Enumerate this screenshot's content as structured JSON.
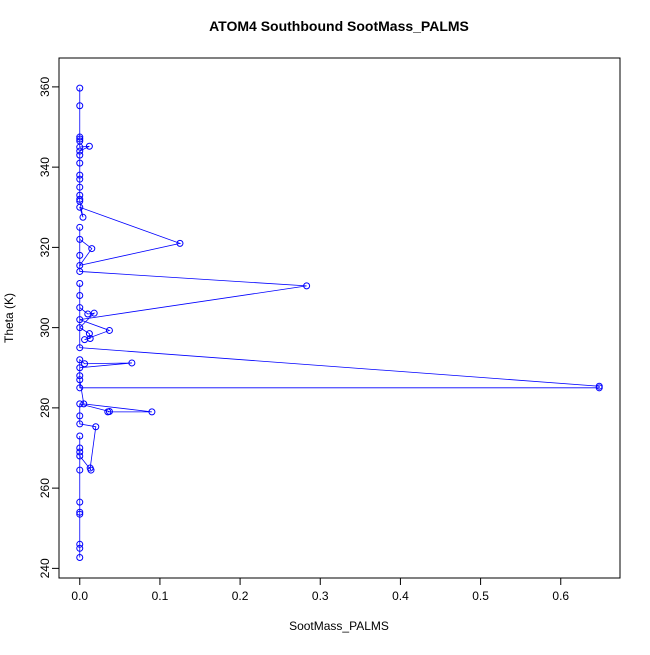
{
  "chart_data": {
    "type": "line",
    "markers": "open-circle",
    "title": "ATOM4 Southbound SootMass_PALMS",
    "x_label": "SootMass_PALMS",
    "y_label": "Theta (K)",
    "color": "#0000ff",
    "x": [
      0,
      0,
      0,
      0,
      0,
      0,
      0.012,
      0,
      0,
      0,
      0,
      0,
      0,
      0,
      0,
      0,
      0.004,
      0,
      0.125,
      0,
      0.015,
      0,
      0,
      0,
      0,
      0.283,
      0,
      0.037,
      0.006,
      0.013,
      0.012,
      0,
      0.018,
      0.01,
      0,
      0,
      0,
      0,
      0.648,
      0.648,
      0,
      0,
      0,
      0.065,
      0.006,
      0,
      0,
      0.005,
      0.09,
      0.035,
      0.037,
      0,
      0,
      0,
      0.02,
      0.013,
      0.014,
      0,
      0,
      0,
      0,
      0,
      0,
      0,
      0,
      0,
      0,
      0
    ],
    "y": [
      359.7,
      355.3,
      347.5,
      347,
      346.5,
      345,
      345.2,
      344,
      343,
      341,
      338,
      337,
      335,
      333,
      332,
      331.5,
      327.5,
      330,
      321,
      315.5,
      319.7,
      322,
      325,
      318,
      314,
      310.4,
      302,
      299.3,
      297,
      297.3,
      298.5,
      300,
      303.6,
      303.4,
      305,
      308,
      311,
      295,
      285.4,
      285,
      285,
      288,
      290,
      291.2,
      291,
      292,
      287,
      281,
      279,
      279,
      279.1,
      281,
      278,
      276,
      275.3,
      265,
      264.5,
      268,
      270,
      269,
      273,
      264.5,
      256.5,
      254,
      253.5,
      246,
      245,
      242.7
    ],
    "xlim": [
      -0.0259,
      0.6739
    ],
    "ylim": [
      237.6,
      367.2
    ],
    "xticks": [
      {
        "value": 0,
        "label": "0.0"
      },
      0.1,
      0.2,
      0.3,
      0.4,
      0.5,
      0.6
    ],
    "yticks": [
      240,
      260,
      280,
      300,
      320,
      340,
      360
    ]
  }
}
